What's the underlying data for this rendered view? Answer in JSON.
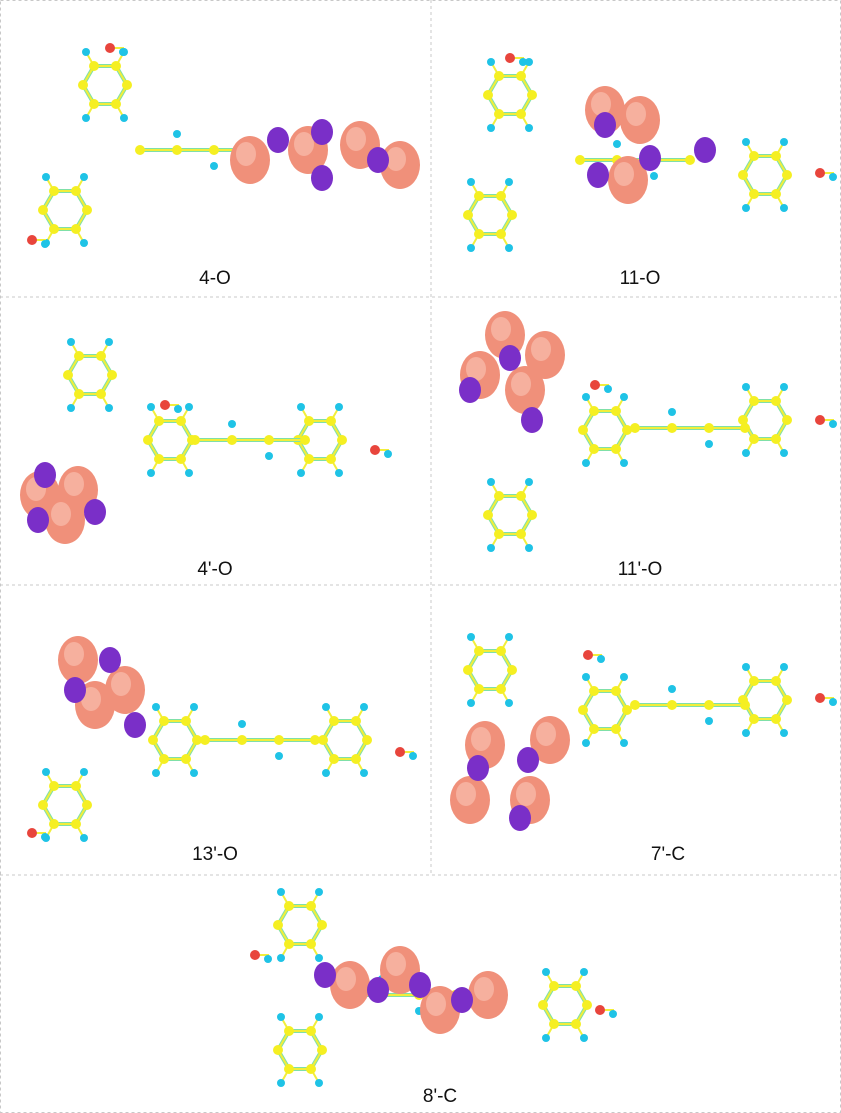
{
  "panels": [
    {
      "label": "4-O"
    },
    {
      "label": "11-O"
    },
    {
      "label": "4'-O"
    },
    {
      "label": "11'-O"
    },
    {
      "label": "13'-O"
    },
    {
      "label": "7'-C"
    },
    {
      "label": "8'-C"
    }
  ]
}
